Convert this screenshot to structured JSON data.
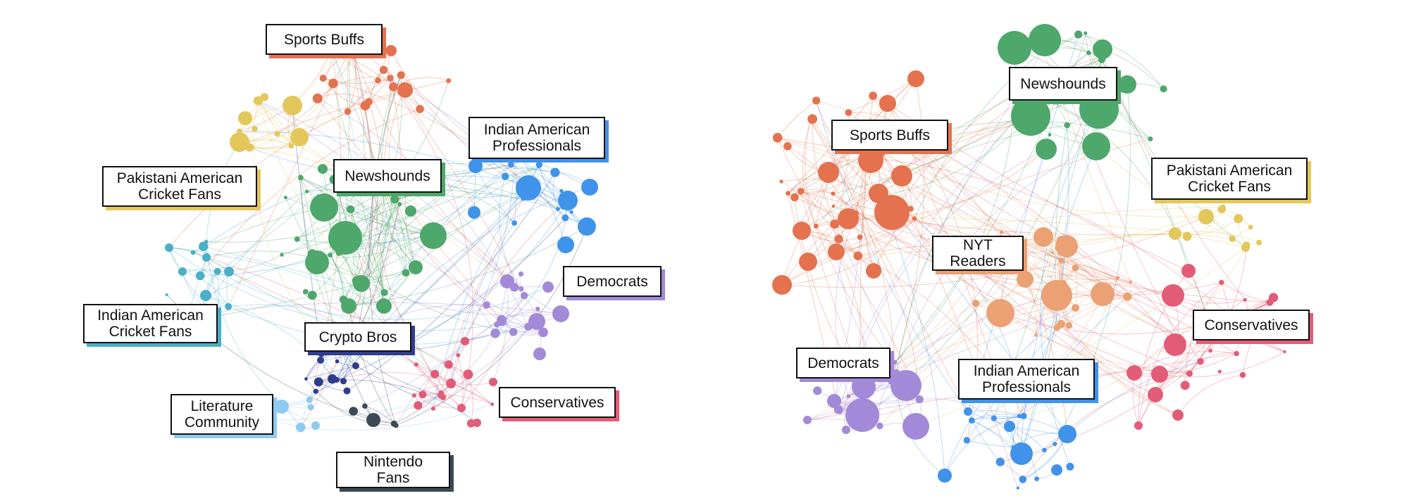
{
  "colors": {
    "sports": "#e4724e",
    "newshounds": "#4ea76b",
    "pakistani": "#e3c75a",
    "indian_prof": "#3f93ea",
    "indian_cricket": "#4aafc7",
    "democrats": "#a28ad8",
    "conservatives": "#e25c78",
    "crypto": "#2f3d8f",
    "literature": "#8fcaf0",
    "nintendo": "#3b4a55",
    "nyt": "#eba173"
  },
  "graphs": [
    {
      "name": "left",
      "communities": [
        {
          "key": "sports",
          "label": "Sports Buffs"
        },
        {
          "key": "pakistani",
          "label": "Pakistani American\nCricket Fans"
        },
        {
          "key": "newshounds",
          "label": "Newshounds"
        },
        {
          "key": "indian_prof",
          "label": "Indian American\nProfessionals"
        },
        {
          "key": "democrats",
          "label": "Democrats"
        },
        {
          "key": "indian_cricket",
          "label": "Indian American\nCricket Fans"
        },
        {
          "key": "crypto",
          "label": "Crypto Bros"
        },
        {
          "key": "conservatives",
          "label": "Conservatives"
        },
        {
          "key": "literature",
          "label": "Literature\nCommunity"
        },
        {
          "key": "nintendo",
          "label": "Nintendo\nFans"
        }
      ]
    },
    {
      "name": "right",
      "communities": [
        {
          "key": "newshounds",
          "label": "Newshounds"
        },
        {
          "key": "sports",
          "label": "Sports Buffs"
        },
        {
          "key": "pakistani",
          "label": "Pakistani American\nCricket Fans"
        },
        {
          "key": "nyt",
          "label": "NYT\nReaders"
        },
        {
          "key": "conservatives",
          "label": "Conservatives"
        },
        {
          "key": "democrats",
          "label": "Democrats"
        },
        {
          "key": "indian_prof",
          "label": "Indian American\nProfessionals"
        }
      ]
    }
  ]
}
